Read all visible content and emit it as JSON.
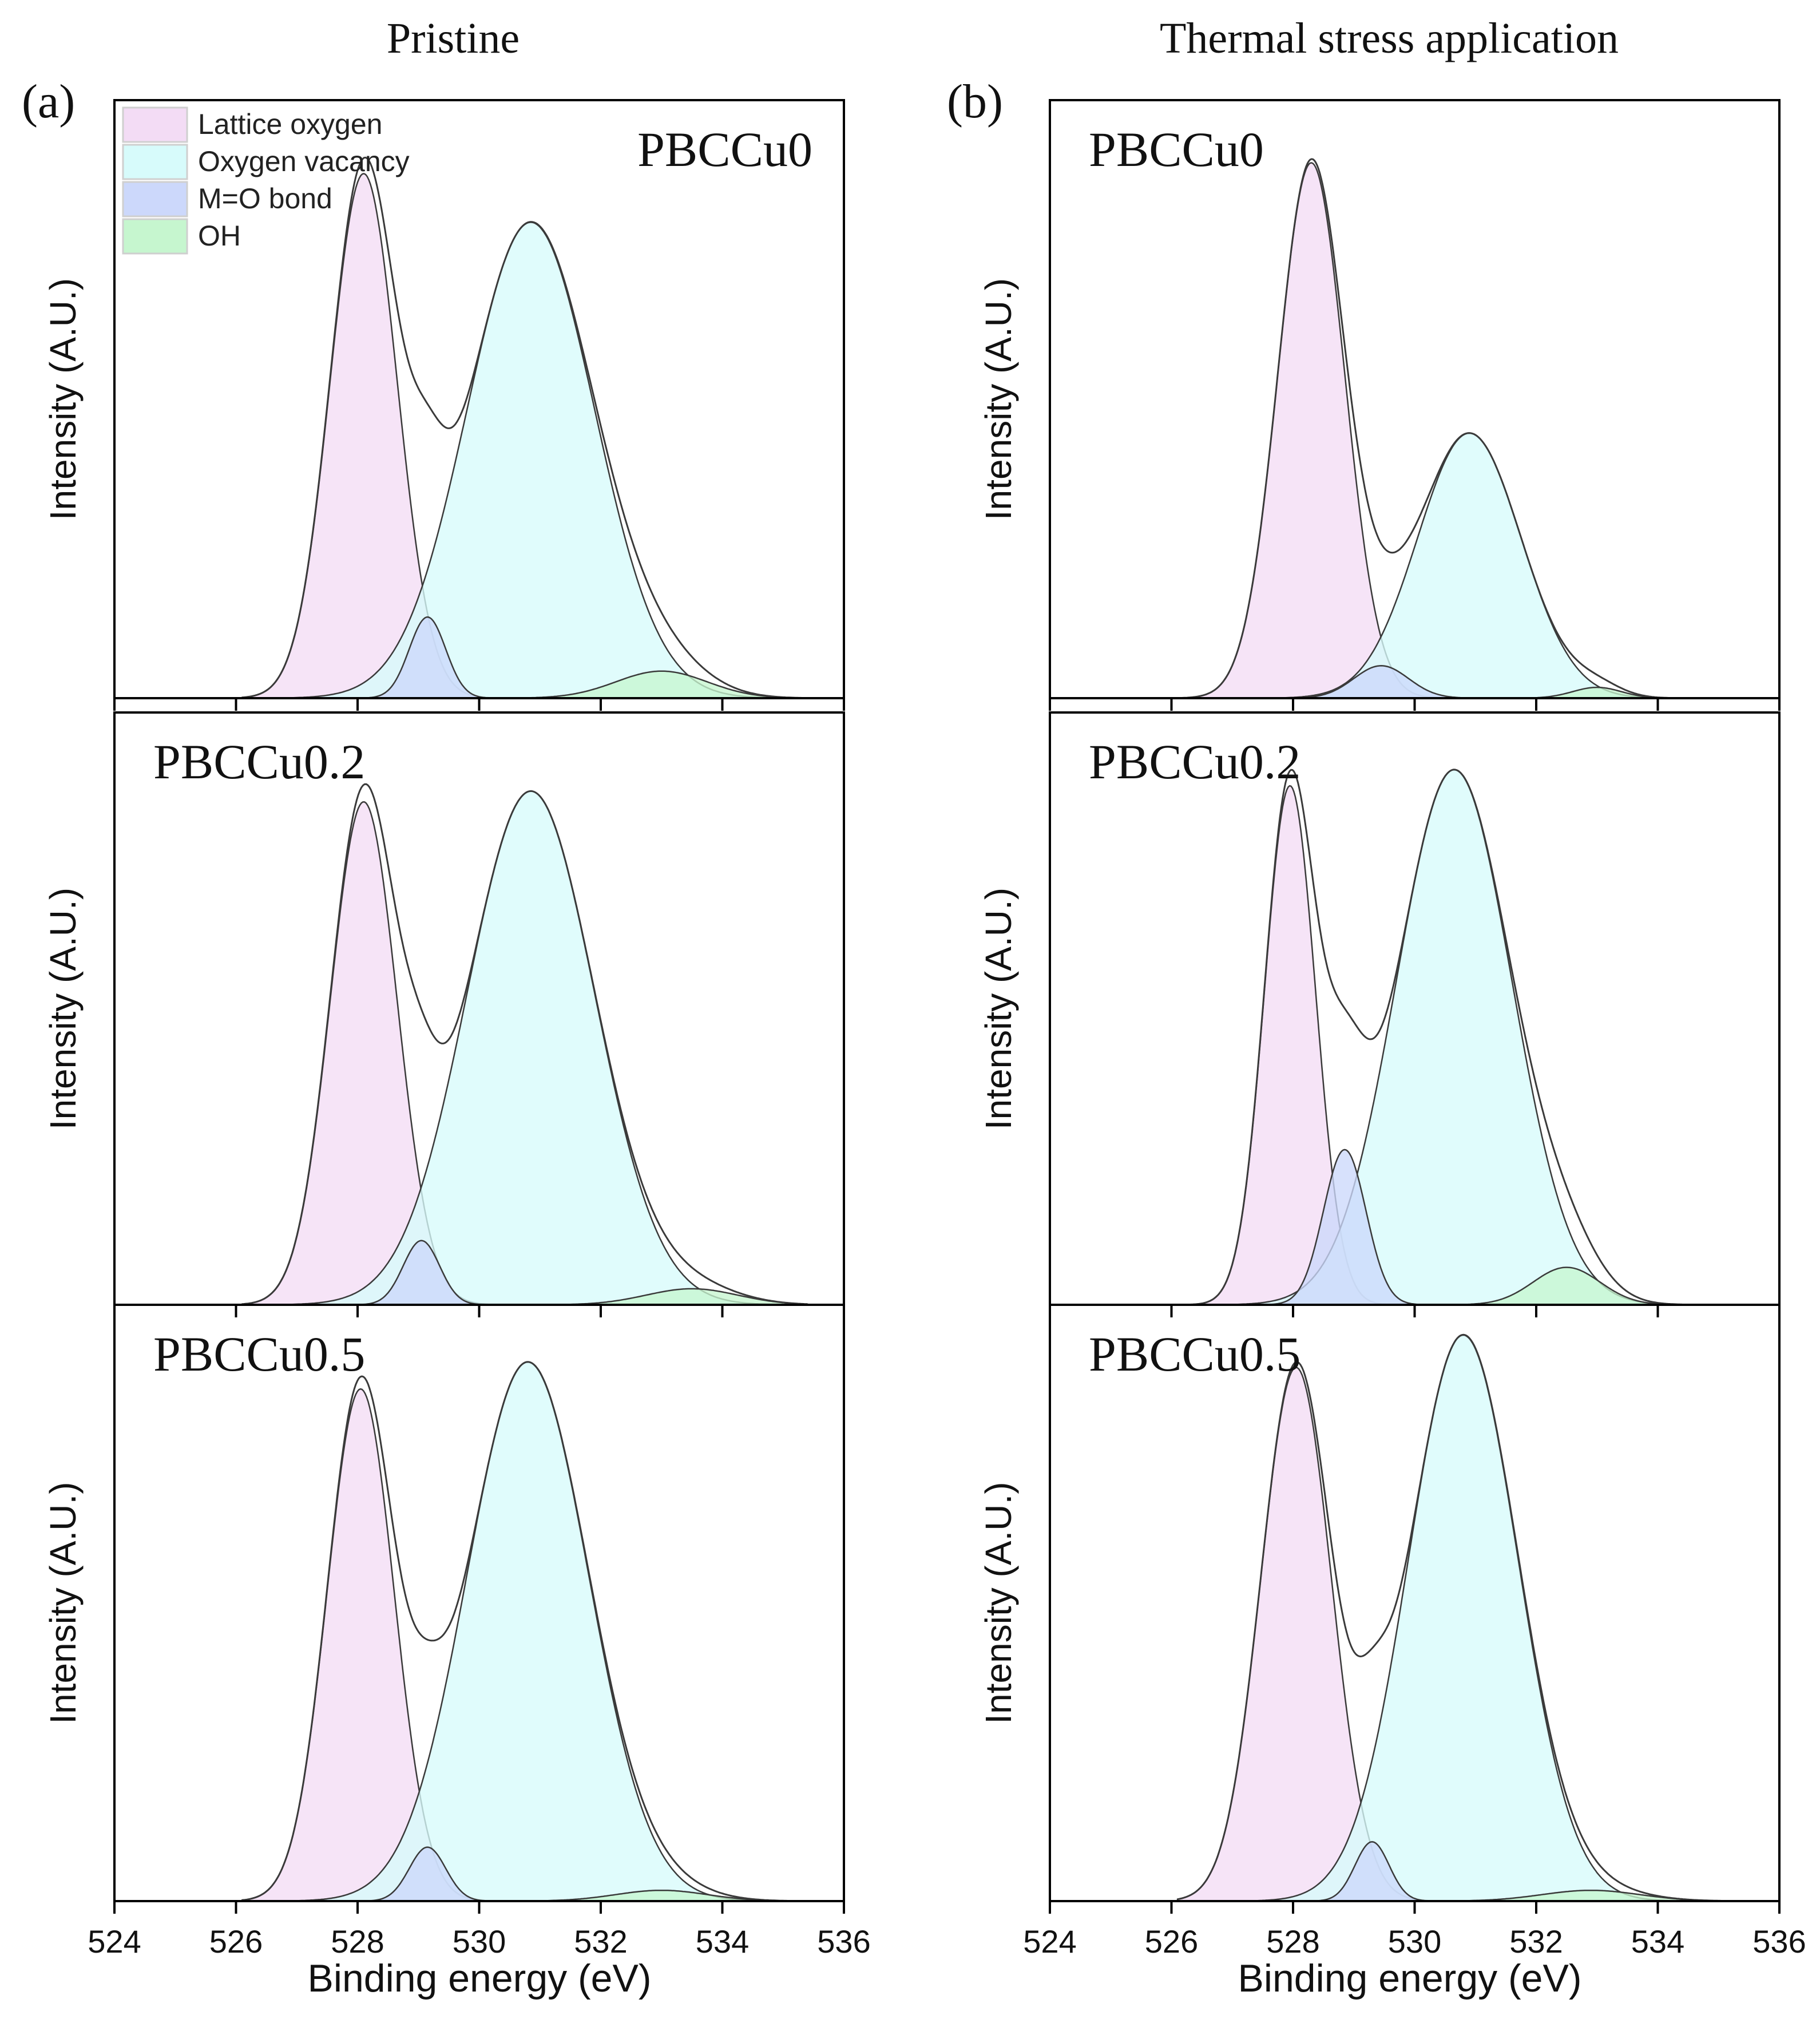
{
  "colors": {
    "lattice_oxygen": "#f3dcf5",
    "oxygen_vacancy": "#d7fbfb",
    "mo_bond": "#ccd8fb",
    "oh": "#c6f6cf",
    "line": "#3a3a3a",
    "frame": "#000000"
  },
  "chart_data": {
    "type": "area",
    "description_free": true,
    "xlabel": "Binding energy (eV)",
    "ylabel": "Intensity (A.U.)",
    "xlim": [
      524,
      536
    ],
    "x_ticks": [
      524,
      526,
      528,
      530,
      532,
      534,
      536
    ],
    "legend": {
      "location": "top-left",
      "entries": [
        {
          "key": "lattice_oxygen",
          "label": "Lattice oxygen"
        },
        {
          "key": "oxygen_vacancy",
          "label": "Oxygen vacancy"
        },
        {
          "key": "mo_bond",
          "label": "M=O bond"
        },
        {
          "key": "oh",
          "label": "OH"
        }
      ]
    },
    "columns": [
      {
        "title": "Pristine",
        "panel_label": "(a)",
        "panels": [
          {
            "sample": "PBCCu0",
            "label_location": "top-right",
            "range": [
              526.1,
              535.6
            ],
            "peaks": [
              {
                "component": "lattice_oxygen",
                "center": 528.1,
                "height": 0.97,
                "width": 0.55
              },
              {
                "component": "oxygen_vacancy",
                "center": 530.85,
                "height": 0.88,
                "width": 1.05
              },
              {
                "component": "mo_bond",
                "center": 529.15,
                "height": 0.15,
                "width": 0.3
              },
              {
                "component": "oh",
                "center": 533.0,
                "height": 0.05,
                "width": 0.75
              }
            ]
          },
          {
            "sample": "PBCCu0.2",
            "label_location": "top-left",
            "range": [
              526.1,
              535.4
            ],
            "peaks": [
              {
                "component": "lattice_oxygen",
                "center": 528.1,
                "height": 0.94,
                "width": 0.55
              },
              {
                "component": "oxygen_vacancy",
                "center": 530.85,
                "height": 0.96,
                "width": 1.05
              },
              {
                "component": "mo_bond",
                "center": 529.05,
                "height": 0.12,
                "width": 0.3
              },
              {
                "component": "oh",
                "center": 533.5,
                "height": 0.03,
                "width": 0.75
              }
            ]
          },
          {
            "sample": "PBCCu0.5",
            "label_location": "top-left",
            "range": [
              526.1,
              535.2
            ],
            "peaks": [
              {
                "component": "lattice_oxygen",
                "center": 528.05,
                "height": 0.95,
                "width": 0.55
              },
              {
                "component": "oxygen_vacancy",
                "center": 530.8,
                "height": 1.0,
                "width": 1.0
              },
              {
                "component": "mo_bond",
                "center": 529.15,
                "height": 0.1,
                "width": 0.3
              },
              {
                "component": "oh",
                "center": 533.0,
                "height": 0.02,
                "width": 0.75
              }
            ]
          }
        ]
      },
      {
        "title": "Thermal stress application",
        "panel_label": "(b)",
        "panels": [
          {
            "sample": "PBCCu0",
            "label_location": "top-left",
            "range": [
              526.1,
              534.2
            ],
            "peaks": [
              {
                "component": "lattice_oxygen",
                "center": 528.3,
                "height": 0.99,
                "width": 0.55
              },
              {
                "component": "oxygen_vacancy",
                "center": 530.9,
                "height": 0.49,
                "width": 0.85
              },
              {
                "component": "mo_bond",
                "center": 529.45,
                "height": 0.06,
                "width": 0.45
              },
              {
                "component": "oh",
                "center": 533.0,
                "height": 0.02,
                "width": 0.4
              }
            ]
          },
          {
            "sample": "PBCCu0.2",
            "label_location": "top-left",
            "range": [
              526.1,
              534.4
            ],
            "peaks": [
              {
                "component": "lattice_oxygen",
                "center": 527.95,
                "height": 0.97,
                "width": 0.42
              },
              {
                "component": "oxygen_vacancy",
                "center": 530.65,
                "height": 1.0,
                "width": 0.95
              },
              {
                "component": "mo_bond",
                "center": 528.85,
                "height": 0.29,
                "width": 0.35
              },
              {
                "component": "oh",
                "center": 532.5,
                "height": 0.07,
                "width": 0.55
              }
            ]
          },
          {
            "sample": "PBCCu0.5",
            "label_location": "top-left",
            "range": [
              526.1,
              535.2
            ],
            "peaks": [
              {
                "component": "lattice_oxygen",
                "center": 528.05,
                "height": 0.99,
                "width": 0.58
              },
              {
                "component": "oxygen_vacancy",
                "center": 530.8,
                "height": 1.05,
                "width": 0.9
              },
              {
                "component": "mo_bond",
                "center": 529.3,
                "height": 0.11,
                "width": 0.28
              },
              {
                "component": "oh",
                "center": 532.9,
                "height": 0.02,
                "width": 0.8
              }
            ]
          }
        ]
      }
    ]
  }
}
